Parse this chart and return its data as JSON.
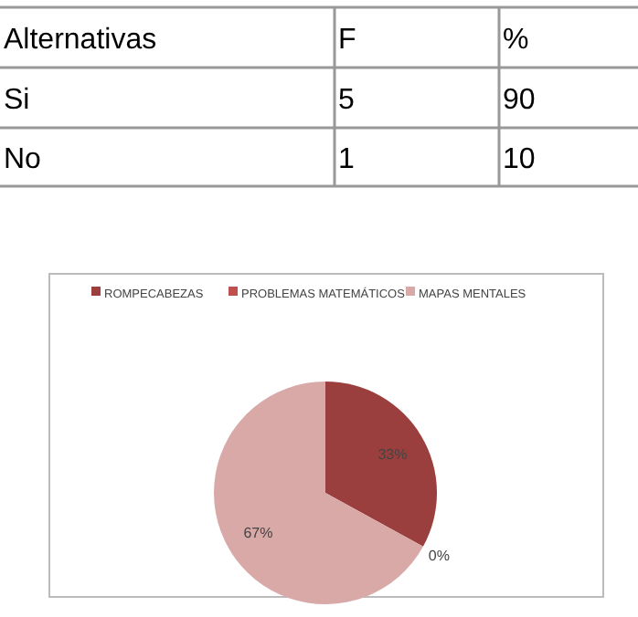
{
  "chart_data": [
    {
      "type": "other",
      "annotations": [
        "Alternativas",
        "F",
        "%",
        "Si",
        "5",
        "90",
        "No",
        "1",
        "10"
      ]
    },
    {
      "type": "pie",
      "categories": [
        "ROMPECABEZAS",
        "PROBLEMAS MATEMÁTICOS",
        "MAPAS MENTALES"
      ],
      "values": [
        33,
        0,
        67
      ],
      "colors": [
        "#9b3f3e",
        "#c0504d",
        "#d9a9a8"
      ],
      "value_labels": [
        "33%",
        "0%",
        "67%"
      ],
      "legend": "top"
    }
  ]
}
